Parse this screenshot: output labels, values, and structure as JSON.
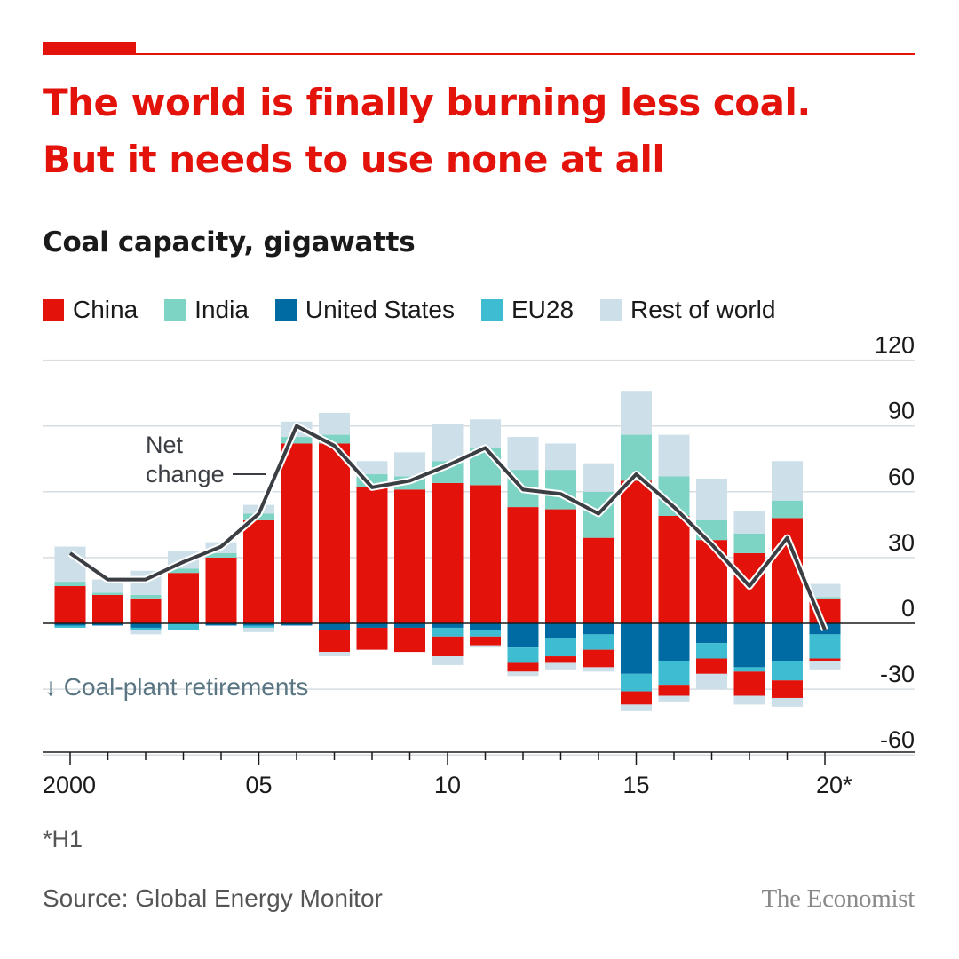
{
  "header": {
    "title_line1": "The world is finally burning less coal.",
    "title_line2": "But it needs to use none at all"
  },
  "chart_data": {
    "type": "bar",
    "stacked": true,
    "title": "Coal capacity, gigawatts",
    "years": [
      2000,
      2001,
      2002,
      2003,
      2004,
      2005,
      2006,
      2007,
      2008,
      2009,
      2010,
      2011,
      2012,
      2013,
      2014,
      2015,
      2016,
      2017,
      2018,
      2019,
      2020
    ],
    "x_tick_labels": [
      "2000",
      "05",
      "10",
      "15",
      "20*"
    ],
    "x_tick_years": [
      2000,
      2005,
      2010,
      2015,
      2020
    ],
    "y_ticks": [
      120,
      90,
      60,
      30,
      0,
      -30,
      -60
    ],
    "ylim": [
      -60,
      120
    ],
    "y_axis_position": "right",
    "legend_position": "top-left",
    "colors": {
      "China": "#e3120b",
      "India": "#7dd3c4",
      "United States": "#006ba2",
      "EU28": "#3ebcd2",
      "Rest of world": "#cde0ea",
      "net_line": "#3b3f44"
    },
    "additions": {
      "China": [
        17,
        13,
        11,
        23,
        30,
        47,
        82,
        82,
        62,
        61,
        64,
        63,
        53,
        52,
        39,
        65,
        49,
        38,
        32,
        48,
        11
      ],
      "India": [
        2,
        1,
        2,
        2,
        2,
        3,
        3,
        4,
        6,
        6,
        10,
        17,
        17,
        18,
        21,
        21,
        18,
        9,
        9,
        8,
        1
      ],
      "United States": [
        0,
        0,
        0,
        0,
        0,
        0,
        0,
        0,
        0,
        0,
        0,
        0,
        0,
        0,
        0,
        0,
        0,
        0,
        0,
        0,
        0
      ],
      "EU28": [
        0,
        0,
        0,
        0,
        0,
        0,
        0,
        0,
        0,
        0,
        0,
        0,
        0,
        0,
        0,
        0,
        0,
        0,
        0,
        0,
        0
      ],
      "Rest of world": [
        16,
        6,
        11,
        8,
        5,
        4,
        7,
        10,
        6,
        11,
        17,
        13,
        15,
        12,
        13,
        20,
        19,
        19,
        10,
        18,
        6
      ]
    },
    "retirements": {
      "China": [
        0,
        0,
        0,
        0,
        0,
        0,
        0,
        -10,
        -10,
        -11,
        -9,
        -4,
        -4,
        -3,
        -8,
        -6,
        -5,
        -7,
        -11,
        -8,
        -1
      ],
      "India": [
        0,
        0,
        0,
        0,
        0,
        0,
        0,
        0,
        0,
        0,
        0,
        0,
        0,
        0,
        0,
        0,
        0,
        0,
        0,
        0,
        0
      ],
      "United States": [
        -1,
        -1,
        -2,
        0,
        -1,
        -1,
        -1,
        -3,
        -2,
        -2,
        -2,
        -3,
        -11,
        -7,
        -5,
        -23,
        -17,
        -9,
        -20,
        -17,
        -5
      ],
      "EU28": [
        -1,
        0,
        -1,
        -3,
        0,
        -1,
        0,
        0,
        0,
        0,
        -4,
        -3,
        -7,
        -8,
        -7,
        -8,
        -11,
        -7,
        -2,
        -9,
        -11
      ],
      "Rest of world": [
        0,
        0,
        -2,
        0,
        0,
        -2,
        0,
        -2,
        0,
        0,
        -4,
        -1,
        -2,
        -3,
        -2,
        -3,
        -3,
        -7,
        -4,
        -4,
        -4
      ]
    },
    "net_change": [
      32,
      20,
      20,
      28,
      35,
      50,
      90,
      81,
      62,
      65,
      72,
      80,
      61,
      59,
      50,
      68,
      53,
      36,
      17,
      39,
      -3
    ],
    "annotations": {
      "net_change_label_line1": "Net",
      "net_change_label_line2": "change",
      "retirements_label": "↓ Coal-plant retirements"
    }
  },
  "legend": [
    {
      "label": "China",
      "color": "#e3120b"
    },
    {
      "label": "India",
      "color": "#7dd3c4"
    },
    {
      "label": "United States",
      "color": "#006ba2"
    },
    {
      "label": "EU28",
      "color": "#3ebcd2"
    },
    {
      "label": "Rest of world",
      "color": "#cde0ea"
    }
  ],
  "footer": {
    "footnote": "*H1",
    "source": "Source: Global Energy Monitor",
    "logo": "The Economist"
  }
}
